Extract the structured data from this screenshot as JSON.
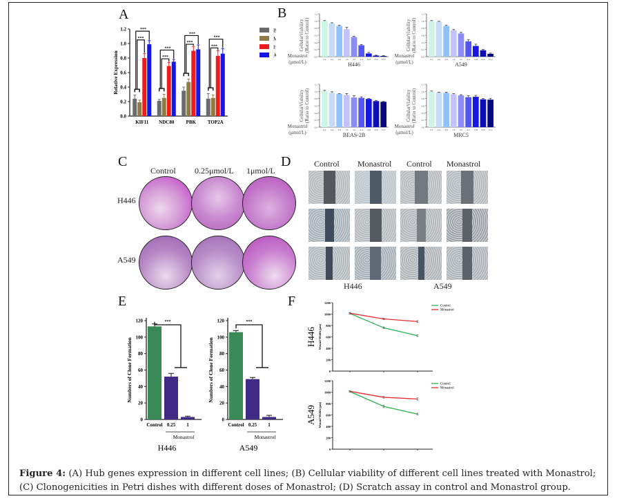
{
  "figure": {
    "panels": {
      "A": "A",
      "B": "B",
      "C": "C",
      "D": "D",
      "E": "E",
      "F": "F"
    },
    "caption_label": "Figure 4:",
    "caption_text": " (A) Hub genes expression in different cell lines; (B) Cellular viability of different cell lines treated with Monastrol; (C) Clonogenicities in Petri dishes with different doses of Monastrol; (D) Scratch assay in control and Monastrol group."
  },
  "panel_c": {
    "columns": [
      "Control",
      "0.25μmol/L",
      "1μmol/L"
    ],
    "rows": [
      "H446",
      "A549"
    ]
  },
  "panel_d": {
    "columns": [
      "Control",
      "Monastrol",
      "Control",
      "Monastrol"
    ],
    "groups": [
      "H446",
      "A549"
    ]
  },
  "chart_data": [
    {
      "id": "A",
      "type": "bar",
      "title": "",
      "xlabel": "",
      "ylabel": "Relative Expression",
      "ylim": [
        0,
        1.2
      ],
      "yticks": [
        "0.0",
        "0.2",
        "0.4",
        "0.6",
        "0.8",
        "1.0",
        "1.2"
      ],
      "categories": [
        "KIF11",
        "NDC80",
        "PBK",
        "TOP2A"
      ],
      "legend_position": "right",
      "significance": "***",
      "series": [
        {
          "name": "BEAS-2B",
          "color": "#6b6b6b",
          "values": [
            0.24,
            0.21,
            0.35,
            0.24
          ],
          "errors": [
            0.05,
            0.02,
            0.05,
            0.07
          ]
        },
        {
          "name": "MRC5",
          "color": "#8f7a44",
          "values": [
            0.19,
            0.25,
            0.47,
            0.25
          ],
          "errors": [
            0.03,
            0.05,
            0.04,
            0.04
          ]
        },
        {
          "name": "H446",
          "color": "#ee1c1c",
          "values": [
            0.8,
            0.69,
            0.9,
            0.83
          ],
          "errors": [
            0.06,
            0.05,
            0.06,
            0.07
          ]
        },
        {
          "name": "A549",
          "color": "#1515e6",
          "values": [
            0.99,
            0.75,
            0.92,
            0.86
          ],
          "errors": [
            0.05,
            0.03,
            0.06,
            0.07
          ]
        }
      ]
    },
    {
      "id": "B-H446",
      "type": "bar",
      "ylabel": "CellularViability (Ratio to Control)",
      "xlabel": "H446",
      "x_prefix": "Monastrol (μmol/L)",
      "ylim": [
        0,
        1.2
      ],
      "yticks": [
        "0.0",
        "0.2",
        "0.4",
        "0.6",
        "0.8",
        "1.0",
        "1.2"
      ],
      "categories": [
        "0.2",
        "0.4",
        "0.8",
        "1.6",
        "3.2",
        "6.4",
        "12.8",
        "25.6",
        "51.2"
      ],
      "values": [
        1.0,
        0.93,
        0.86,
        0.77,
        0.55,
        0.32,
        0.09,
        0.03,
        0.02
      ],
      "errors": [
        0.01,
        0.02,
        0.02,
        0.05,
        0.02,
        0.02,
        0.03,
        0.01,
        0.01
      ]
    },
    {
      "id": "B-A549",
      "type": "bar",
      "ylabel": "CellularViability (Ratio to Control)",
      "xlabel": "A549",
      "x_prefix": "Monastrol (μmol/L)",
      "ylim": [
        0,
        1.2
      ],
      "yticks": [
        "0.0",
        "0.2",
        "0.4",
        "0.6",
        "0.8",
        "1.0",
        "1.2"
      ],
      "categories": [
        "0.2",
        "0.4",
        "0.8",
        "1.6",
        "3.2",
        "6.4",
        "12.8",
        "25.6",
        "51.2"
      ],
      "values": [
        1.0,
        0.98,
        0.86,
        0.74,
        0.65,
        0.43,
        0.3,
        0.18,
        0.08
      ],
      "errors": [
        0.01,
        0.01,
        0.02,
        0.02,
        0.03,
        0.05,
        0.05,
        0.02,
        0.02
      ]
    },
    {
      "id": "B-BEAS-2B",
      "type": "bar",
      "ylabel": "CellularViability (Ratio to Control)",
      "xlabel": "BEAS-2B",
      "x_prefix": "Monastrol (μmol/L)",
      "ylim": [
        0,
        1.2
      ],
      "yticks": [
        "0.0",
        "0.2",
        "0.4",
        "0.6",
        "0.8",
        "1.0",
        "1.2"
      ],
      "categories": [
        "0.2",
        "0.4",
        "0.8",
        "1.6",
        "3.2",
        "6.4",
        "12.8",
        "25.6",
        "51.2"
      ],
      "values": [
        1.01,
        0.96,
        0.93,
        0.9,
        0.83,
        0.82,
        0.79,
        0.73,
        0.71
      ],
      "errors": [
        0.02,
        0.03,
        0.01,
        0.04,
        0.05,
        0.03,
        0.01,
        0.02,
        0.01
      ]
    },
    {
      "id": "B-MRC5",
      "type": "bar",
      "ylabel": "CellularViability (Ratio to Control)",
      "xlabel": "MRC5",
      "x_prefix": "Monastrol (μmol/L)",
      "ylim": [
        0,
        1.2
      ],
      "yticks": [
        "0.0",
        "0.2",
        "0.4",
        "0.6",
        "0.8",
        "1.0",
        "1.2"
      ],
      "categories": [
        "0.2",
        "0.4",
        "0.8",
        "1.6",
        "3.2",
        "6.4",
        "12.8",
        "25.6",
        "51.2"
      ],
      "values": [
        1.0,
        0.97,
        0.96,
        0.92,
        0.89,
        0.84,
        0.85,
        0.78,
        0.77
      ],
      "errors": [
        0.01,
        0.01,
        0.02,
        0.02,
        0.02,
        0.04,
        0.04,
        0.02,
        0.03
      ]
    },
    {
      "id": "E-H446",
      "type": "bar",
      "ylabel": "Numbers of Clone Formation",
      "xlabel": "H446",
      "group_label": "Monastrol",
      "ylim": [
        0,
        120
      ],
      "yticks": [
        "0",
        "20",
        "40",
        "60",
        "80",
        "100",
        "120"
      ],
      "categories": [
        "Control",
        "0.25",
        "1"
      ],
      "values": [
        113,
        52,
        3
      ],
      "errors": [
        3,
        4,
        1
      ],
      "colors": [
        "#3a8a58",
        "#3f2a85",
        "#3f2a85"
      ],
      "significance": "***"
    },
    {
      "id": "E-A549",
      "type": "bar",
      "ylabel": "Numbers of Clone Formation",
      "xlabel": "A549",
      "group_label": "Monastrol",
      "ylim": [
        0,
        120
      ],
      "yticks": [
        "0",
        "20",
        "40",
        "60",
        "80",
        "100",
        "120"
      ],
      "categories": [
        "Control",
        "0.25",
        "1"
      ],
      "values": [
        106,
        49,
        3
      ],
      "errors": [
        2,
        2,
        2
      ],
      "colors": [
        "#3a8a58",
        "#3f2a85",
        "#3f2a85"
      ],
      "significance": "***"
    },
    {
      "id": "F-H446",
      "type": "line",
      "row_label": "H446",
      "ylabel": "Wound Width (μm)",
      "ylim": [
        0,
        1200
      ],
      "yticks": [
        "0",
        "200",
        "400",
        "600",
        "800",
        "1000",
        "1200"
      ],
      "x": [
        "0h",
        "12h",
        "24h"
      ],
      "legend_position": "top-right",
      "series": [
        {
          "name": "Control",
          "color": "#2bb24c",
          "values": [
            1010,
            760,
            620
          ],
          "errors": [
            10,
            15,
            15
          ]
        },
        {
          "name": "Monastrol",
          "color": "#e62a2a",
          "values": [
            1015,
            915,
            870
          ],
          "errors": [
            10,
            15,
            15
          ]
        }
      ]
    },
    {
      "id": "F-A549",
      "type": "line",
      "row_label": "A549",
      "ylabel": "Wound Width (μm)",
      "ylim": [
        0,
        1200
      ],
      "yticks": [
        "0",
        "200",
        "400",
        "600",
        "800",
        "1000",
        "1200"
      ],
      "x": [
        "0h",
        "12h",
        "24h"
      ],
      "legend_position": "top-right",
      "series": [
        {
          "name": "Control",
          "color": "#2bb24c",
          "values": [
            1010,
            750,
            615
          ],
          "errors": [
            10,
            20,
            15
          ]
        },
        {
          "name": "Monastrol",
          "color": "#e62a2a",
          "values": [
            1015,
            910,
            880
          ],
          "errors": [
            10,
            15,
            20
          ]
        }
      ]
    }
  ],
  "b_palette": [
    "#cdf5e6",
    "#c4dcf6",
    "#8ec2f9",
    "#c2c3fb",
    "#8c8cf7",
    "#5454f0",
    "#1717e3",
    "#0c0cb8",
    "#070780"
  ]
}
